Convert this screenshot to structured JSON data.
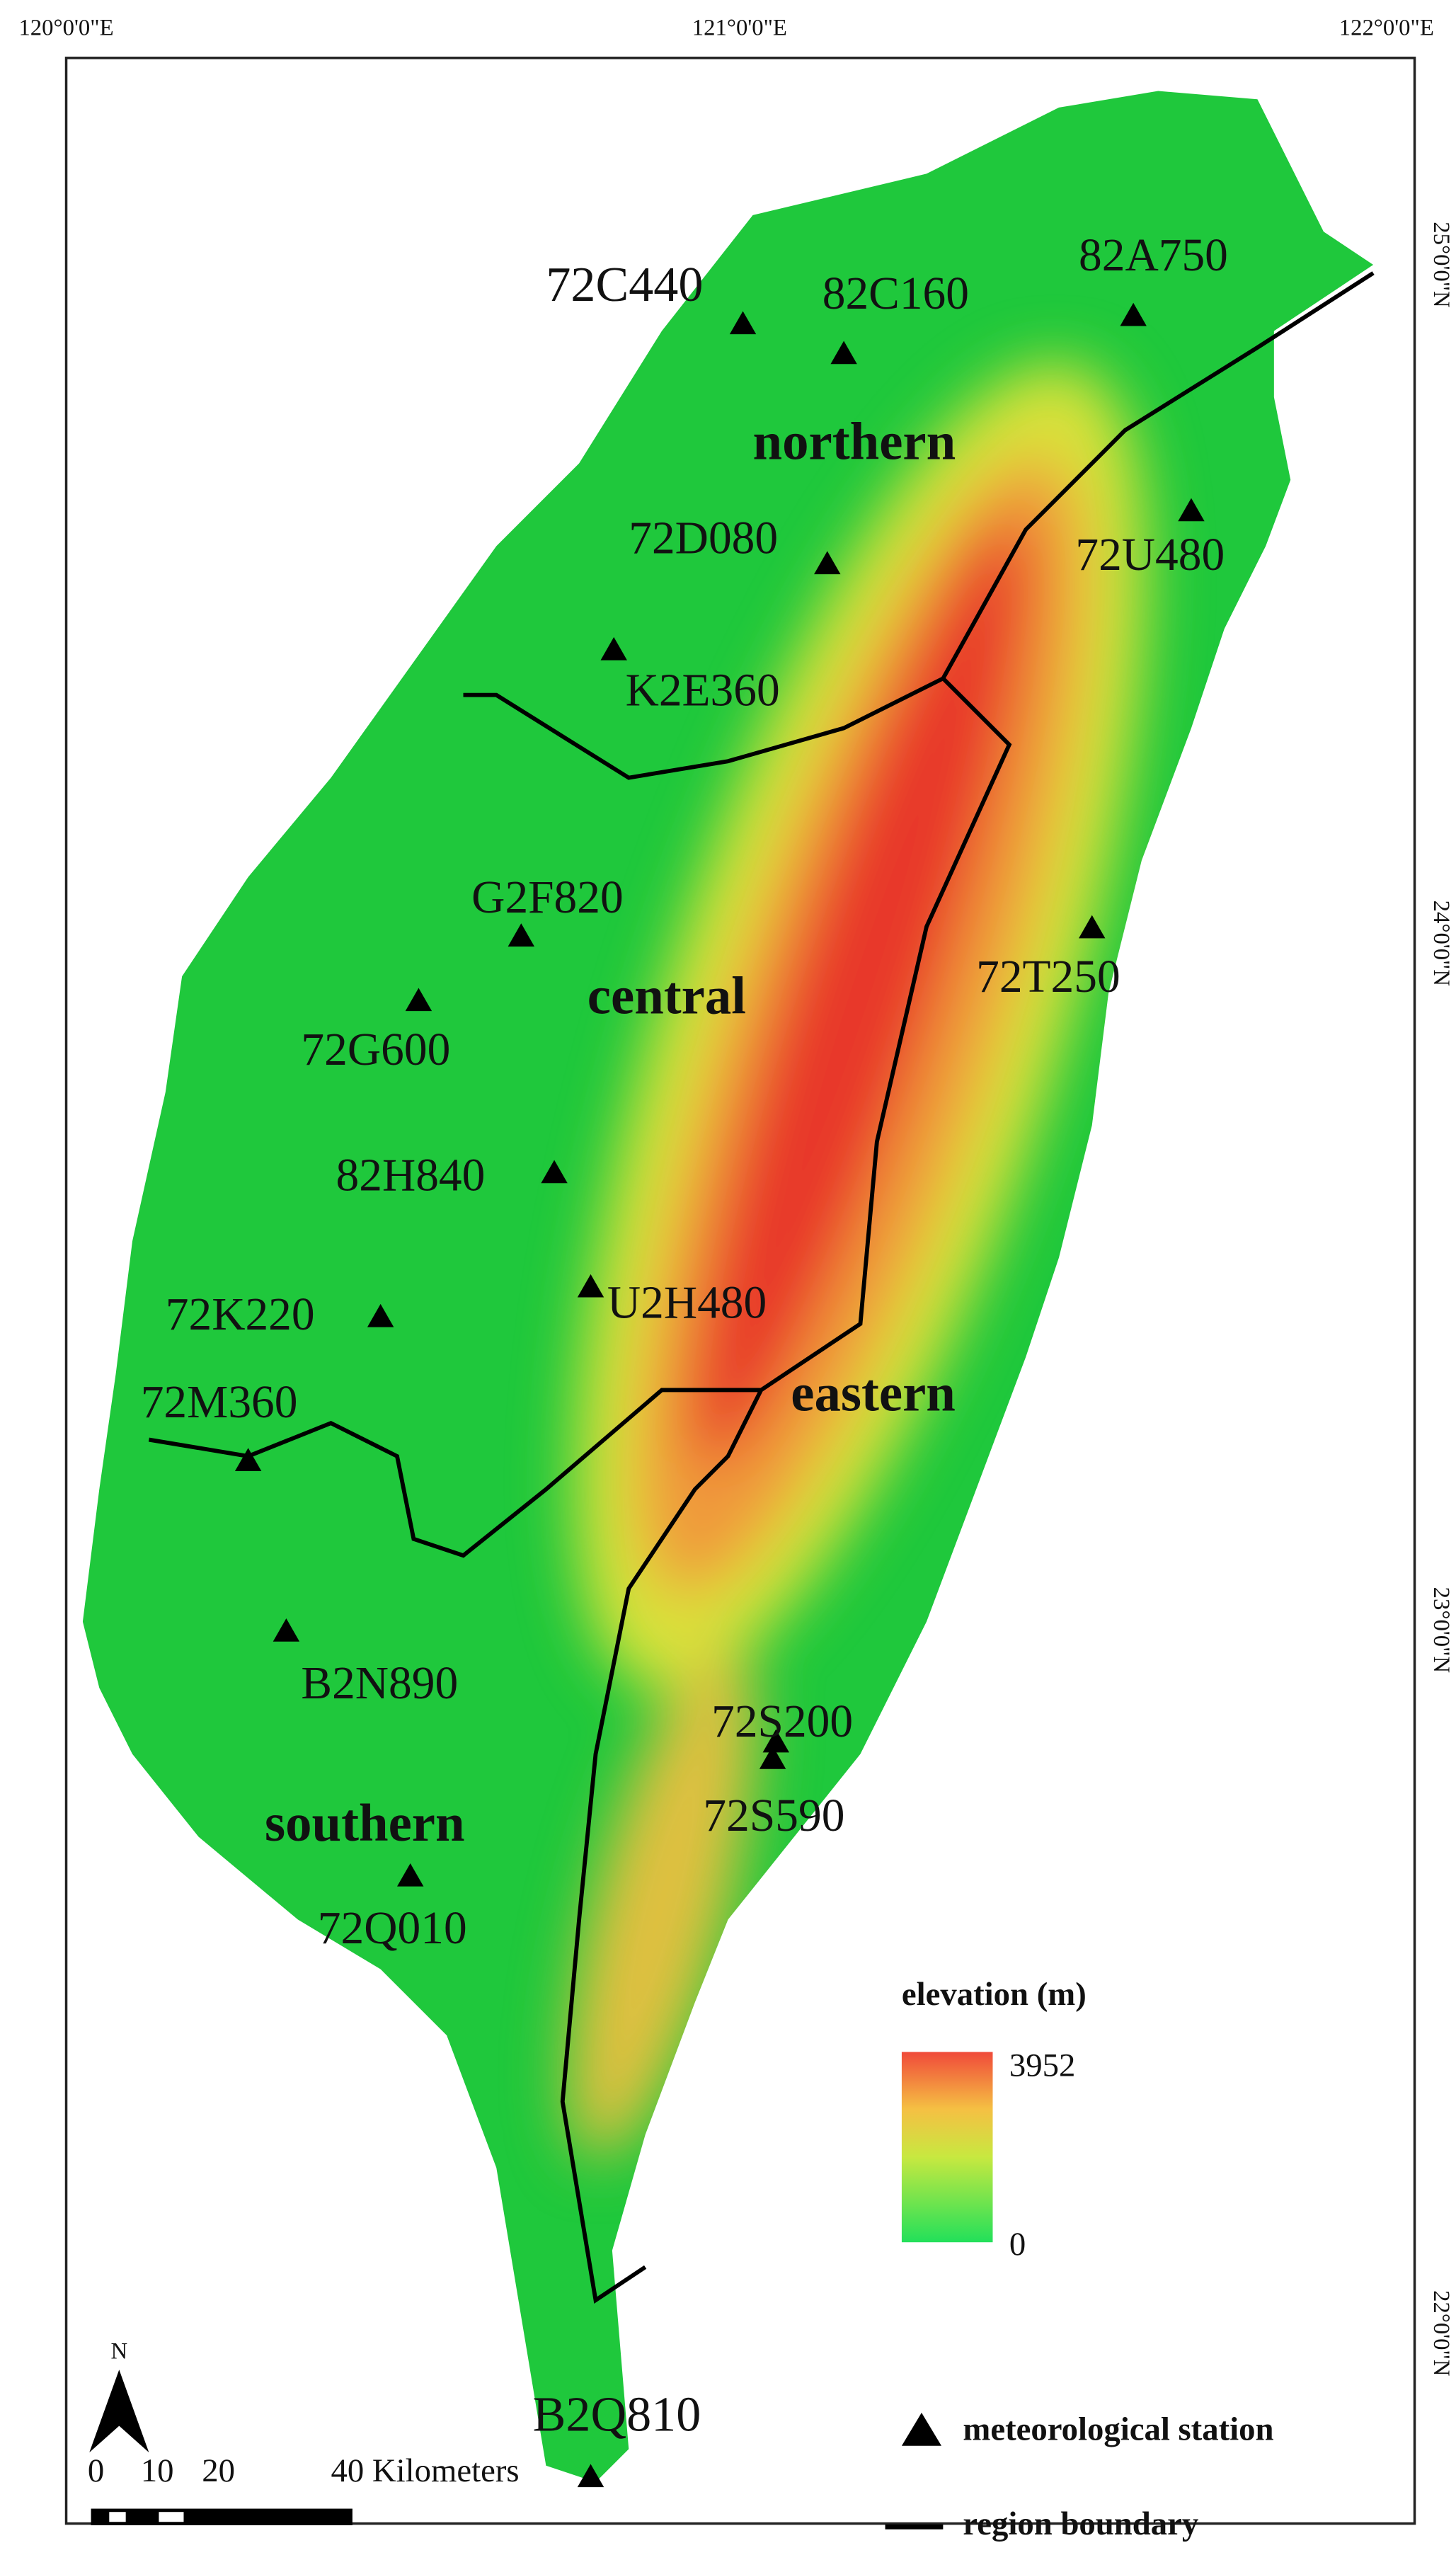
{
  "graticule": {
    "longitudes": [
      "120°0'0\"E",
      "121°0'0\"E",
      "122°0'0\"E"
    ],
    "latitudes": [
      "25°0'0\"N",
      "24°0'0\"N",
      "23°0'0\"N",
      "22°0'0\"N"
    ]
  },
  "stations": [
    {
      "label": "72C440"
    },
    {
      "label": "82C160"
    },
    {
      "label": "82A750"
    },
    {
      "label": "72U480"
    },
    {
      "label": "72D080"
    },
    {
      "label": "K2E360"
    },
    {
      "label": "G2F820"
    },
    {
      "label": "72G600"
    },
    {
      "label": "72T250"
    },
    {
      "label": "82H840"
    },
    {
      "label": "U2H480"
    },
    {
      "label": "72K220"
    },
    {
      "label": "72M360"
    },
    {
      "label": "B2N890"
    },
    {
      "label": "72S200"
    },
    {
      "label": "72S590"
    },
    {
      "label": "72Q010"
    },
    {
      "label": "B2Q810"
    }
  ],
  "regions": [
    "northern",
    "central",
    "eastern",
    "southern"
  ],
  "legend": {
    "elevation_title": "elevation (m)",
    "elevation_max": 3952,
    "elevation_min": 0,
    "station_label": "meteorological station",
    "boundary_label": "region boundary"
  },
  "north_arrow": "N",
  "scale_bar": {
    "ticks": [
      0,
      10,
      20
    ],
    "label": "40 Kilometers"
  }
}
